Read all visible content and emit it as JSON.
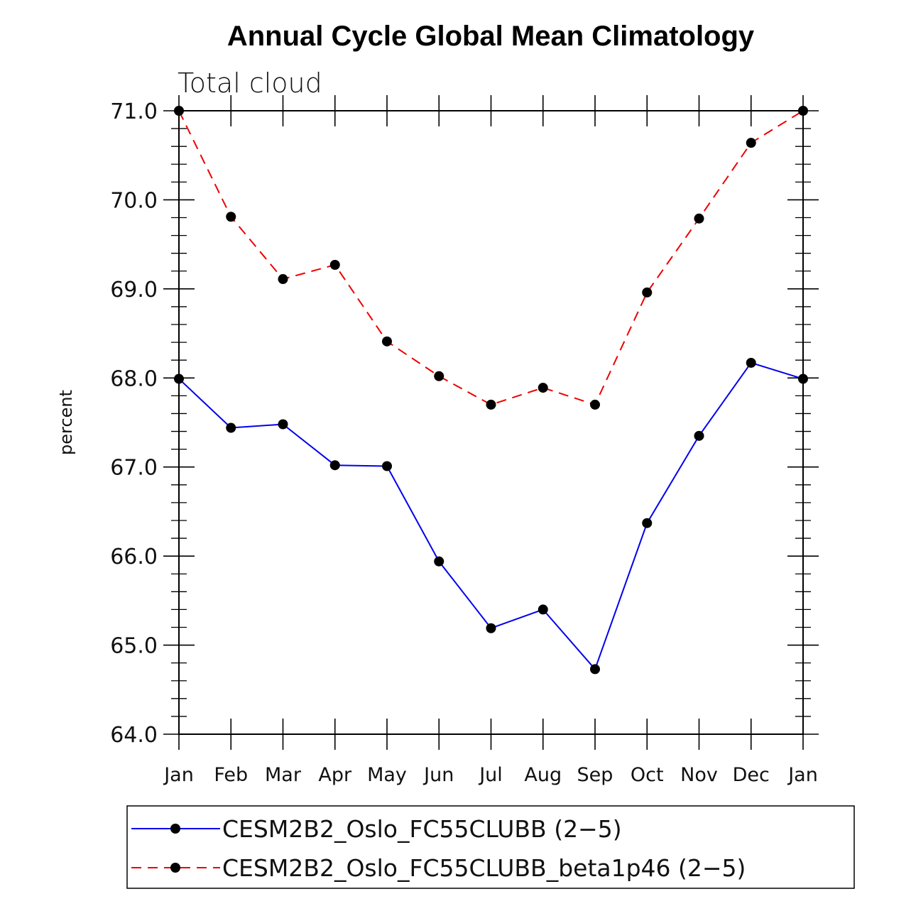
{
  "chart_data": {
    "type": "line",
    "title": "Annual Cycle Global Mean Climatology",
    "subtitle": "Total cloud",
    "xlabel": "",
    "ylabel": "percent",
    "ylim": [
      64.0,
      71.0
    ],
    "yticks": [
      "64.0",
      "65.0",
      "66.0",
      "67.0",
      "68.0",
      "69.0",
      "70.0",
      "71.0"
    ],
    "categories": [
      "Jan",
      "Feb",
      "Mar",
      "Apr",
      "May",
      "Jun",
      "Jul",
      "Aug",
      "Sep",
      "Oct",
      "Nov",
      "Dec",
      "Jan"
    ],
    "series": [
      {
        "name": "CESM2B2_Oslo_FC55CLUBB (2−5)",
        "color": "#0000ee",
        "dash": "solid",
        "marker": "filled-circle",
        "values": [
          67.99,
          67.44,
          67.48,
          67.02,
          67.01,
          65.94,
          65.19,
          65.4,
          64.73,
          66.37,
          67.35,
          68.17,
          67.99
        ]
      },
      {
        "name": "CESM2B2_Oslo_FC55CLUBB_beta1p46 (2−5)",
        "color": "#ee0000",
        "dash": "dashed",
        "marker": "filled-circle",
        "values": [
          71.0,
          69.81,
          69.11,
          69.27,
          68.41,
          68.02,
          67.7,
          67.89,
          67.7,
          68.96,
          69.79,
          70.64,
          71.0
        ]
      }
    ],
    "legend_position": "bottom"
  }
}
